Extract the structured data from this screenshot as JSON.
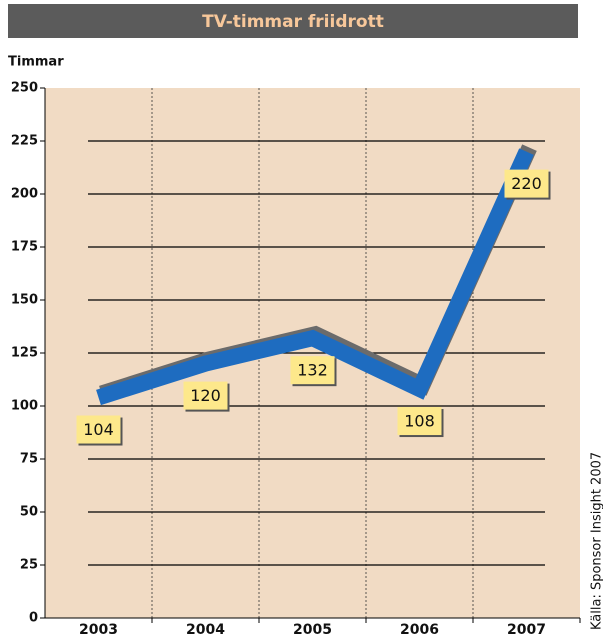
{
  "chart_data": {
    "type": "line",
    "title": "TV-timmar friidrott",
    "y_label": "Timmar",
    "categories": [
      "2003",
      "2004",
      "2005",
      "2006",
      "2007"
    ],
    "series": [
      {
        "name": "TV-timmar",
        "color": "#1e6cc0",
        "values": [
          104,
          120,
          132,
          108,
          220
        ]
      }
    ],
    "ylim": [
      0,
      250
    ],
    "yticks": [
      0,
      25,
      50,
      75,
      100,
      125,
      150,
      175,
      200,
      225,
      250
    ],
    "grid": true,
    "source": "Källa: Sponsor Insight 2007"
  }
}
